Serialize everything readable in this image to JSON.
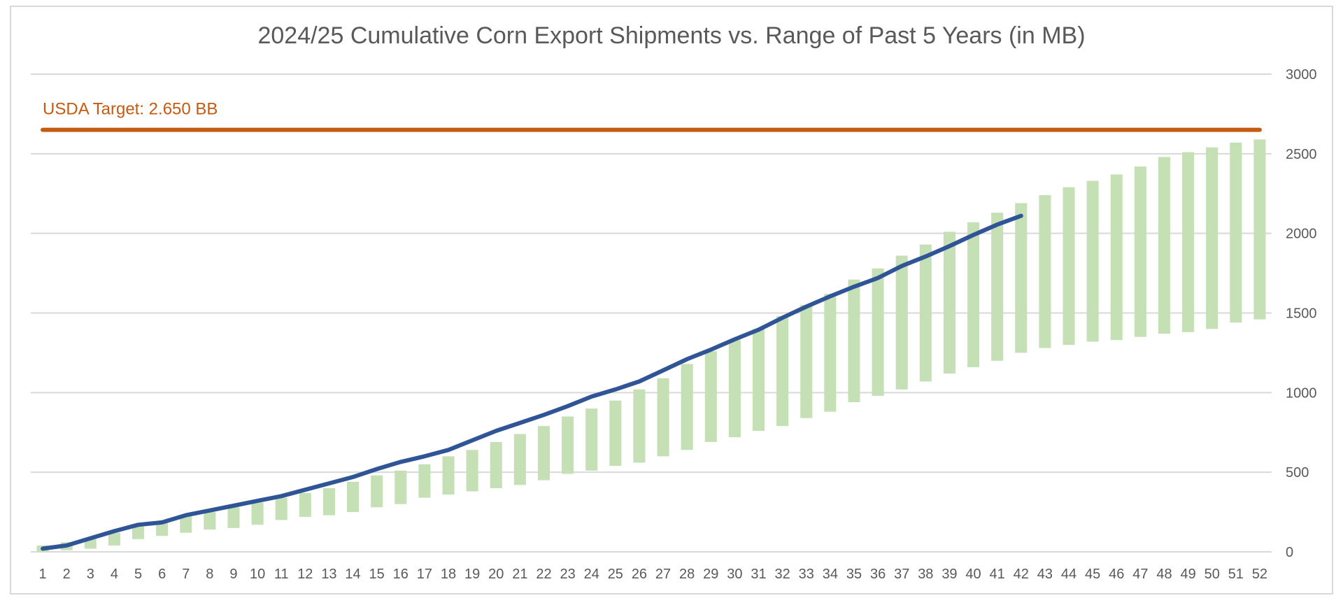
{
  "chart_data": {
    "type": "bar",
    "title": "2024/25 Cumulative Corn Export Shipments vs. Range of Past 5 Years (in MB)",
    "xlabel": "",
    "ylabel": "",
    "ylim": [
      0,
      3000
    ],
    "yticks": [
      "0",
      "500",
      "1000",
      "1500",
      "2000",
      "2500",
      "3000"
    ],
    "ytick_values": [
      0,
      500,
      1000,
      1500,
      2000,
      2500,
      3000
    ],
    "y_axis_side": "right",
    "grid": true,
    "categories": [
      "1",
      "2",
      "3",
      "4",
      "5",
      "6",
      "7",
      "8",
      "9",
      "10",
      "11",
      "12",
      "13",
      "14",
      "15",
      "16",
      "17",
      "18",
      "19",
      "20",
      "21",
      "22",
      "23",
      "24",
      "25",
      "26",
      "27",
      "28",
      "29",
      "30",
      "31",
      "32",
      "33",
      "34",
      "35",
      "36",
      "37",
      "38",
      "39",
      "40",
      "41",
      "42",
      "43",
      "44",
      "45",
      "46",
      "47",
      "48",
      "49",
      "50",
      "51",
      "52"
    ],
    "range_series": {
      "color": "#c5e0b4",
      "low": [
        0,
        10,
        20,
        40,
        80,
        100,
        120,
        140,
        150,
        170,
        200,
        220,
        230,
        250,
        280,
        300,
        340,
        360,
        380,
        400,
        420,
        450,
        490,
        510,
        540,
        560,
        600,
        640,
        690,
        720,
        760,
        790,
        840,
        880,
        940,
        980,
        1020,
        1070,
        1120,
        1160,
        1200,
        1250,
        1280,
        1300,
        1320,
        1330,
        1350,
        1370,
        1380,
        1400,
        1440,
        1460
      ],
      "high": [
        40,
        60,
        80,
        120,
        170,
        190,
        230,
        250,
        280,
        310,
        340,
        370,
        400,
        440,
        480,
        510,
        550,
        600,
        640,
        690,
        740,
        790,
        850,
        900,
        950,
        1020,
        1090,
        1180,
        1260,
        1330,
        1400,
        1480,
        1550,
        1620,
        1710,
        1780,
        1860,
        1930,
        2010,
        2070,
        2130,
        2190,
        2240,
        2290,
        2330,
        2370,
        2420,
        2480,
        2510,
        2540,
        2570,
        2590
      ]
    },
    "line_series": {
      "color": "#2f5597",
      "values": [
        20,
        40,
        85,
        130,
        170,
        185,
        230,
        260,
        290,
        320,
        350,
        390,
        430,
        470,
        520,
        565,
        600,
        640,
        700,
        760,
        810,
        860,
        915,
        975,
        1020,
        1070,
        1140,
        1210,
        1270,
        1335,
        1395,
        1470,
        1540,
        1605,
        1665,
        1720,
        1795,
        1855,
        1920,
        1990,
        2055,
        2110
      ]
    },
    "target": {
      "label": "USDA Target: 2.650 BB",
      "value": 2650,
      "color": "#c55a11"
    }
  }
}
